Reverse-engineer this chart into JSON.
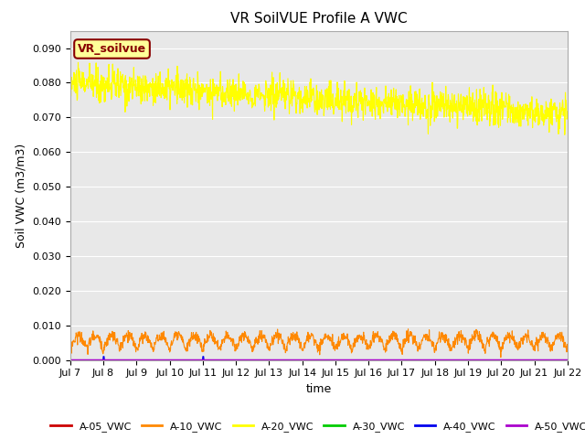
{
  "title": "VR SoilVUE Profile A VWC",
  "ylabel": "Soil VWC (m3/m3)",
  "xlabel": "time",
  "annotation_text": "VR_soilvue",
  "ylim": [
    0.0,
    0.095
  ],
  "yticks": [
    0.0,
    0.01,
    0.02,
    0.03,
    0.04,
    0.05,
    0.06,
    0.07,
    0.08,
    0.09
  ],
  "n_points": 1440,
  "legend_colors": {
    "A-05_VWC": "#cc0000",
    "A-10_VWC": "#ff8800",
    "A-20_VWC": "#ffff00",
    "A-30_VWC": "#00cc00",
    "A-40_VWC": "#0000ee",
    "A-50_VWC": "#aa00cc"
  },
  "bg_color": "#e8e8e8",
  "annotation_bg": "#ffff99",
  "annotation_border": "#880000",
  "annotation_text_color": "#880000",
  "title_fontsize": 11,
  "axis_fontsize": 9,
  "tick_fontsize": 8,
  "legend_fontsize": 8
}
